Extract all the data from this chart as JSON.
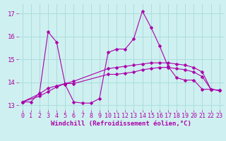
{
  "xlabel": "Windchill (Refroidissement éolien,°C)",
  "bg_color": "#cff0f0",
  "grid_color": "#aadddd",
  "line_color": "#aa00aa",
  "xlim": [
    -0.5,
    23.5
  ],
  "ylim": [
    12.8,
    17.4
  ],
  "yticks": [
    13,
    14,
    15,
    16,
    17
  ],
  "xticks": [
    0,
    1,
    2,
    3,
    4,
    5,
    6,
    7,
    8,
    9,
    10,
    11,
    12,
    13,
    14,
    15,
    16,
    17,
    18,
    19,
    20,
    21,
    22,
    23
  ],
  "series1_x": [
    0,
    1,
    2,
    3,
    4,
    5,
    6,
    7,
    8,
    9,
    10,
    11,
    12,
    13,
    14,
    15,
    16,
    17,
    18,
    19,
    20,
    21,
    22,
    23
  ],
  "series1_y": [
    13.15,
    13.15,
    13.55,
    16.2,
    15.75,
    13.9,
    13.15,
    13.1,
    13.1,
    13.3,
    15.3,
    15.45,
    15.45,
    15.9,
    17.1,
    16.4,
    15.6,
    14.7,
    14.2,
    14.1,
    14.1,
    13.7,
    13.7,
    13.65
  ],
  "series2_x": [
    0,
    2,
    3,
    4,
    5,
    6,
    10,
    11,
    12,
    13,
    14,
    15,
    16,
    17,
    18,
    19,
    20,
    21,
    22,
    23
  ],
  "series2_y": [
    13.15,
    13.5,
    13.75,
    13.85,
    13.95,
    13.95,
    14.35,
    14.35,
    14.4,
    14.45,
    14.55,
    14.6,
    14.65,
    14.65,
    14.6,
    14.55,
    14.45,
    14.25,
    13.7,
    13.65
  ],
  "series3_x": [
    0,
    2,
    3,
    4,
    5,
    6,
    10,
    11,
    12,
    13,
    14,
    15,
    16,
    17,
    18,
    19,
    20,
    21,
    22,
    23
  ],
  "series3_y": [
    13.15,
    13.4,
    13.6,
    13.8,
    13.95,
    14.05,
    14.6,
    14.65,
    14.7,
    14.75,
    14.8,
    14.85,
    14.85,
    14.85,
    14.8,
    14.75,
    14.65,
    14.45,
    13.7,
    13.65
  ],
  "xlabel_fontsize": 6.5,
  "tick_fontsize": 6,
  "markersize": 2.5
}
